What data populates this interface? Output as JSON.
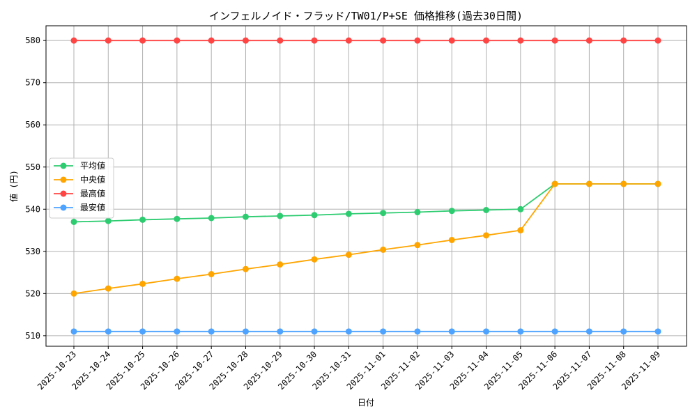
{
  "chart_data": {
    "type": "line",
    "title": "インフェルノイド・フラッド/TW01/P+SE 価格推移(過去30日間)",
    "xlabel": "日付",
    "ylabel": "値 (円)",
    "grid": true,
    "legend_position": "center-left",
    "ylim": [
      507.5,
      583.5
    ],
    "yticks": [
      510,
      520,
      530,
      540,
      550,
      560,
      570,
      580
    ],
    "categories": [
      "2025-10-23",
      "2025-10-24",
      "2025-10-25",
      "2025-10-26",
      "2025-10-27",
      "2025-10-28",
      "2025-10-29",
      "2025-10-30",
      "2025-10-31",
      "2025-11-01",
      "2025-11-02",
      "2025-11-03",
      "2025-11-04",
      "2025-11-05",
      "2025-11-06",
      "2025-11-07",
      "2025-11-08",
      "2025-11-09"
    ],
    "series": [
      {
        "name": "平均値",
        "color": "#2ecc71",
        "values": [
          537.0,
          537.2,
          537.5,
          537.7,
          537.9,
          538.2,
          538.4,
          538.6,
          538.9,
          539.1,
          539.3,
          539.6,
          539.8,
          540.0,
          546.0,
          546.0,
          546.0,
          546.0
        ]
      },
      {
        "name": "中央値",
        "color": "#ffa500",
        "values": [
          520.0,
          521.2,
          522.3,
          523.5,
          524.6,
          525.8,
          526.9,
          528.1,
          529.2,
          530.4,
          531.5,
          532.7,
          533.8,
          535.0,
          546.0,
          546.0,
          546.0,
          546.0
        ]
      },
      {
        "name": "最高値",
        "color": "#ff4444",
        "values": [
          580,
          580,
          580,
          580,
          580,
          580,
          580,
          580,
          580,
          580,
          580,
          580,
          580,
          580,
          580,
          580,
          580,
          580
        ]
      },
      {
        "name": "最安値",
        "color": "#4da3ff",
        "values": [
          511,
          511,
          511,
          511,
          511,
          511,
          511,
          511,
          511,
          511,
          511,
          511,
          511,
          511,
          511,
          511,
          511,
          511
        ]
      }
    ]
  }
}
